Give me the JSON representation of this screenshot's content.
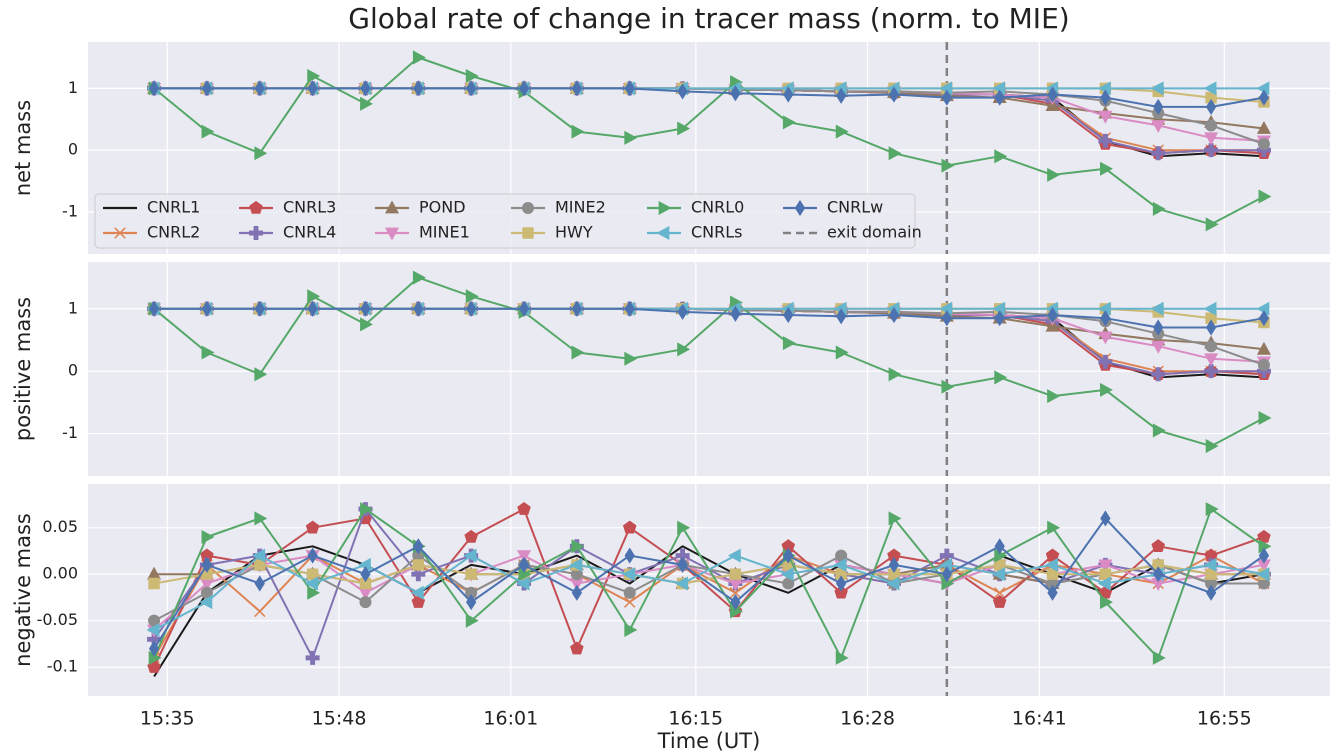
{
  "chart_data": [
    {
      "type": "line",
      "title": "Global rate of change in tracer mass (norm. to MIE)",
      "ylabel": "net mass",
      "x": [
        "15:34",
        "15:38",
        "15:42",
        "15:46",
        "15:50",
        "15:54",
        "15:58",
        "16:02",
        "16:06",
        "16:10",
        "16:14",
        "16:18",
        "16:22",
        "16:26",
        "16:30",
        "16:34",
        "16:38",
        "16:42",
        "16:46",
        "16:50",
        "16:54",
        "16:58"
      ],
      "xlim": [
        "15:29",
        "17:03"
      ],
      "xticks": [
        "15:35",
        "15:48",
        "16:01",
        "16:15",
        "16:28",
        "16:41",
        "16:55"
      ],
      "show_xticklabels": false,
      "ylim": [
        -1.68,
        1.75
      ],
      "yticks": [
        -1,
        0,
        1
      ],
      "grid": true,
      "legend": "lower left",
      "vline": {
        "x": "16:34",
        "name": "exit domain",
        "color": "#808080",
        "style": "dashed"
      },
      "series": [
        {
          "name": "CNRL1",
          "color": "#1a1a1a",
          "marker": "none",
          "values": [
            1,
            1,
            1,
            1,
            1,
            1,
            1,
            1,
            1,
            1,
            1,
            0.98,
            0.97,
            0.95,
            0.93,
            0.9,
            0.9,
            0.85,
            0.15,
            -0.1,
            -0.05,
            -0.1
          ]
        },
        {
          "name": "CNRL2",
          "color": "#dd8452",
          "marker": "x",
          "values": [
            1,
            1,
            1,
            1,
            1,
            1,
            1,
            1,
            1,
            1,
            1,
            0.98,
            0.97,
            0.95,
            0.93,
            0.9,
            0.9,
            0.8,
            0.2,
            0,
            0,
            0
          ]
        },
        {
          "name": "CNRL3",
          "color": "#c44e52",
          "marker": "pentagon",
          "values": [
            1,
            1,
            1,
            1,
            1,
            1,
            1,
            1,
            1,
            1,
            1,
            0.98,
            0.97,
            0.95,
            0.93,
            0.9,
            0.9,
            0.75,
            0.1,
            -0.05,
            0,
            -0.05
          ]
        },
        {
          "name": "CNRL4",
          "color": "#8172b3",
          "marker": "plus",
          "values": [
            1,
            1,
            1,
            1,
            1,
            1,
            1,
            1,
            1,
            1,
            1,
            0.98,
            0.97,
            0.95,
            0.93,
            0.9,
            0.9,
            0.8,
            0.15,
            -0.05,
            0,
            0
          ]
        },
        {
          "name": "POND",
          "color": "#937860",
          "marker": "triangle-up",
          "values": [
            1,
            1,
            1,
            1,
            1,
            1,
            1,
            1,
            1,
            1,
            1,
            0.98,
            0.97,
            0.95,
            0.93,
            0.88,
            0.85,
            0.72,
            0.6,
            0.5,
            0.45,
            0.35
          ]
        },
        {
          "name": "MINE1",
          "color": "#da8bc3",
          "marker": "triangle-down",
          "values": [
            1,
            1,
            1,
            1,
            1,
            1,
            1,
            1,
            1,
            1,
            1,
            0.98,
            0.97,
            0.95,
            0.95,
            0.92,
            0.9,
            0.85,
            0.55,
            0.4,
            0.2,
            0.15
          ]
        },
        {
          "name": "MINE2",
          "color": "#8c8c8c",
          "marker": "circle",
          "values": [
            1,
            1,
            1,
            1,
            1,
            1,
            1,
            1,
            1,
            1,
            1,
            0.98,
            0.97,
            0.95,
            0.95,
            0.93,
            0.95,
            0.9,
            0.8,
            0.6,
            0.4,
            0.1
          ]
        },
        {
          "name": "HWY",
          "color": "#ccb974",
          "marker": "square",
          "values": [
            1,
            1,
            1,
            1,
            1,
            1,
            1,
            1,
            1,
            1,
            1,
            1,
            1,
            1,
            1,
            1,
            1,
            1,
            1,
            0.95,
            0.85,
            0.78
          ]
        },
        {
          "name": "CNRL0",
          "color": "#55a868",
          "marker": "triangle-right",
          "values": [
            1,
            0.3,
            -0.05,
            1.2,
            0.75,
            1.5,
            1.2,
            0.95,
            0.3,
            0.2,
            0.35,
            1.1,
            0.45,
            0.3,
            -0.05,
            -0.25,
            -0.1,
            -0.4,
            -0.3,
            -0.95,
            -1.2,
            -0.75
          ]
        },
        {
          "name": "CNRLs",
          "color": "#64b5cd",
          "marker": "triangle-left",
          "values": [
            1,
            1,
            1,
            1,
            1,
            1,
            1,
            1,
            1,
            1,
            1,
            1,
            1,
            1,
            1,
            1,
            1,
            1,
            1,
            1,
            1,
            1
          ]
        },
        {
          "name": "CNRLw",
          "color": "#4c72b0",
          "marker": "diamond",
          "values": [
            1,
            1,
            1,
            1,
            1,
            1,
            1,
            1,
            1,
            1,
            0.95,
            0.92,
            0.9,
            0.88,
            0.9,
            0.85,
            0.85,
            0.9,
            0.85,
            0.7,
            0.7,
            0.85
          ]
        }
      ]
    },
    {
      "type": "line",
      "ylabel": "positive mass",
      "x": [
        "15:34",
        "15:38",
        "15:42",
        "15:46",
        "15:50",
        "15:54",
        "15:58",
        "16:02",
        "16:06",
        "16:10",
        "16:14",
        "16:18",
        "16:22",
        "16:26",
        "16:30",
        "16:34",
        "16:38",
        "16:42",
        "16:46",
        "16:50",
        "16:54",
        "16:58"
      ],
      "xlim": [
        "15:29",
        "17:03"
      ],
      "xticks": [
        "15:35",
        "15:48",
        "16:01",
        "16:15",
        "16:28",
        "16:41",
        "16:55"
      ],
      "show_xticklabels": false,
      "ylim": [
        -1.68,
        1.75
      ],
      "yticks": [
        -1,
        0,
        1
      ],
      "grid": true,
      "vline": {
        "x": "16:34",
        "color": "#808080",
        "style": "dashed"
      },
      "series": [
        {
          "color": "#1a1a1a",
          "marker": "none",
          "values": [
            1,
            1,
            1,
            1,
            1,
            1,
            1,
            1,
            1,
            1,
            1,
            0.98,
            0.97,
            0.95,
            0.93,
            0.9,
            0.9,
            0.85,
            0.15,
            -0.1,
            -0.05,
            -0.1
          ]
        },
        {
          "color": "#dd8452",
          "marker": "x",
          "values": [
            1,
            1,
            1,
            1,
            1,
            1,
            1,
            1,
            1,
            1,
            1,
            0.98,
            0.97,
            0.95,
            0.93,
            0.9,
            0.9,
            0.8,
            0.2,
            0,
            0,
            0
          ]
        },
        {
          "color": "#c44e52",
          "marker": "pentagon",
          "values": [
            1,
            1,
            1,
            1,
            1,
            1,
            1,
            1,
            1,
            1,
            1,
            0.98,
            0.97,
            0.95,
            0.93,
            0.9,
            0.9,
            0.75,
            0.1,
            -0.05,
            0,
            -0.05
          ]
        },
        {
          "color": "#8172b3",
          "marker": "plus",
          "values": [
            1,
            1,
            1,
            1,
            1,
            1,
            1,
            1,
            1,
            1,
            1,
            0.98,
            0.97,
            0.95,
            0.93,
            0.9,
            0.9,
            0.8,
            0.15,
            -0.05,
            0,
            0
          ]
        },
        {
          "color": "#937860",
          "marker": "triangle-up",
          "values": [
            1,
            1,
            1,
            1,
            1,
            1,
            1,
            1,
            1,
            1,
            1,
            0.98,
            0.97,
            0.95,
            0.93,
            0.88,
            0.85,
            0.72,
            0.6,
            0.5,
            0.45,
            0.35
          ]
        },
        {
          "color": "#da8bc3",
          "marker": "triangle-down",
          "values": [
            1,
            1,
            1,
            1,
            1,
            1,
            1,
            1,
            1,
            1,
            1,
            0.98,
            0.97,
            0.95,
            0.95,
            0.92,
            0.9,
            0.85,
            0.55,
            0.4,
            0.2,
            0.15
          ]
        },
        {
          "color": "#8c8c8c",
          "marker": "circle",
          "values": [
            1,
            1,
            1,
            1,
            1,
            1,
            1,
            1,
            1,
            1,
            1,
            0.98,
            0.97,
            0.95,
            0.95,
            0.93,
            0.95,
            0.9,
            0.8,
            0.6,
            0.4,
            0.1
          ]
        },
        {
          "color": "#ccb974",
          "marker": "square",
          "values": [
            1,
            1,
            1,
            1,
            1,
            1,
            1,
            1,
            1,
            1,
            1,
            1,
            1,
            1,
            1,
            1,
            1,
            1,
            1,
            0.95,
            0.85,
            0.78
          ]
        },
        {
          "color": "#55a868",
          "marker": "triangle-right",
          "values": [
            1,
            0.3,
            -0.05,
            1.2,
            0.75,
            1.5,
            1.2,
            0.95,
            0.3,
            0.2,
            0.35,
            1.1,
            0.45,
            0.3,
            -0.05,
            -0.25,
            -0.1,
            -0.4,
            -0.3,
            -0.95,
            -1.2,
            -0.75
          ]
        },
        {
          "color": "#64b5cd",
          "marker": "triangle-left",
          "values": [
            1,
            1,
            1,
            1,
            1,
            1,
            1,
            1,
            1,
            1,
            1,
            1,
            1,
            1,
            1,
            1,
            1,
            1,
            1,
            1,
            1,
            1
          ]
        },
        {
          "color": "#4c72b0",
          "marker": "diamond",
          "values": [
            1,
            1,
            1,
            1,
            1,
            1,
            1,
            1,
            1,
            1,
            0.95,
            0.92,
            0.9,
            0.88,
            0.9,
            0.85,
            0.85,
            0.9,
            0.85,
            0.7,
            0.7,
            0.85
          ]
        }
      ]
    },
    {
      "type": "line",
      "ylabel": "negative mass",
      "xlabel": "Time (UT)",
      "x": [
        "15:34",
        "15:38",
        "15:42",
        "15:46",
        "15:50",
        "15:54",
        "15:58",
        "16:02",
        "16:06",
        "16:10",
        "16:14",
        "16:18",
        "16:22",
        "16:26",
        "16:30",
        "16:34",
        "16:38",
        "16:42",
        "16:46",
        "16:50",
        "16:54",
        "16:58"
      ],
      "xlim": [
        "15:29",
        "17:03"
      ],
      "xticks": [
        "15:35",
        "15:48",
        "16:01",
        "16:15",
        "16:28",
        "16:41",
        "16:55"
      ],
      "show_xticklabels": true,
      "ylim": [
        -0.131,
        0.097
      ],
      "yticks": [
        -0.1,
        -0.05,
        {
          "value": 0,
          "label": "0.00"
        },
        0.05
      ],
      "grid": true,
      "vline": {
        "x": "16:34",
        "color": "#808080",
        "style": "dashed"
      },
      "series": [
        {
          "color": "#1a1a1a",
          "marker": "none",
          "values": [
            -0.11,
            -0.02,
            0.02,
            0.03,
            0.01,
            -0.02,
            0.01,
            0,
            0.02,
            -0.01,
            0.03,
            0,
            -0.02,
            0.01,
            0,
            -0.01,
            0.02,
            0,
            -0.02,
            0.01,
            -0.01,
            0
          ]
        },
        {
          "color": "#dd8452",
          "marker": "x",
          "values": [
            -0.09,
            0.01,
            -0.04,
            0.02,
            -0.01,
            0.01,
            -0.02,
            0.01,
            0,
            -0.03,
            0.01,
            -0.02,
            0.02,
            0,
            -0.01,
            0.01,
            -0.02,
            0.01,
            0,
            -0.01,
            0.02,
            -0.01
          ]
        },
        {
          "color": "#c44e52",
          "marker": "pentagon",
          "values": [
            -0.1,
            0.02,
            0.01,
            0.05,
            0.06,
            -0.03,
            0.04,
            0.07,
            -0.08,
            0.05,
            0.01,
            -0.04,
            0.03,
            -0.02,
            0.02,
            0.01,
            -0.03,
            0.02,
            -0.02,
            0.03,
            0.02,
            0.04
          ]
        },
        {
          "color": "#8172b3",
          "marker": "plus",
          "values": [
            -0.07,
            0.01,
            0.02,
            -0.09,
            0.07,
            0,
            0.02,
            -0.01,
            0.03,
            0,
            0.02,
            -0.01,
            0.01,
            0,
            -0.01,
            0.02,
            0,
            -0.01,
            0.01,
            0,
            0.01,
            0
          ]
        },
        {
          "color": "#937860",
          "marker": "triangle-up",
          "values": [
            0,
            0,
            0.01,
            0,
            -0.01,
            0.01,
            0,
            0,
            0.01,
            0,
            -0.01,
            0,
            0.01,
            0,
            0,
            0.01,
            0,
            -0.01,
            0,
            0.01,
            0,
            0
          ]
        },
        {
          "color": "#da8bc3",
          "marker": "triangle-down",
          "values": [
            -0.06,
            -0.01,
            0.01,
            0.02,
            -0.02,
            0.01,
            0,
            0.02,
            -0.01,
            0,
            0.01,
            -0.01,
            0,
            0.01,
            0,
            -0.01,
            0.01,
            0,
            0.01,
            -0.01,
            0,
            0.01
          ]
        },
        {
          "color": "#8c8c8c",
          "marker": "circle",
          "values": [
            -0.05,
            -0.02,
            0.01,
            0,
            -0.03,
            0.02,
            -0.02,
            0.01,
            0,
            -0.02,
            0.01,
            0,
            -0.01,
            0.02,
            -0.01,
            0,
            0.01,
            -0.01,
            0,
            0.01,
            -0.01,
            -0.01
          ]
        },
        {
          "color": "#ccb974",
          "marker": "square",
          "values": [
            -0.01,
            0,
            0.01,
            0,
            -0.01,
            0.01,
            0,
            0,
            0.01,
            0,
            -0.01,
            0,
            0.01,
            0,
            0,
            0,
            0.01,
            0,
            0,
            0.01,
            0,
            0
          ]
        },
        {
          "color": "#55a868",
          "marker": "triangle-right",
          "values": [
            -0.09,
            0.04,
            0.06,
            -0.02,
            0.07,
            0.03,
            -0.05,
            0,
            0.03,
            -0.06,
            0.05,
            -0.04,
            0.02,
            -0.09,
            0.06,
            -0.01,
            0.02,
            0.05,
            -0.03,
            -0.09,
            0.07,
            0.03
          ]
        },
        {
          "color": "#64b5cd",
          "marker": "triangle-left",
          "values": [
            -0.06,
            -0.03,
            0.02,
            -0.01,
            0.01,
            -0.02,
            0.02,
            -0.01,
            0.01,
            0,
            -0.01,
            0.02,
            0,
            0.01,
            -0.01,
            0.01,
            0,
            0.01,
            -0.01,
            0,
            0.01,
            0
          ]
        },
        {
          "color": "#4c72b0",
          "marker": "diamond",
          "values": [
            -0.08,
            0.01,
            -0.01,
            0.02,
            0,
            0.03,
            -0.03,
            0.01,
            -0.02,
            0.02,
            0.01,
            -0.03,
            0.02,
            -0.01,
            0.01,
            0,
            0.03,
            -0.02,
            0.06,
            0,
            -0.02,
            0.02
          ]
        }
      ]
    }
  ]
}
